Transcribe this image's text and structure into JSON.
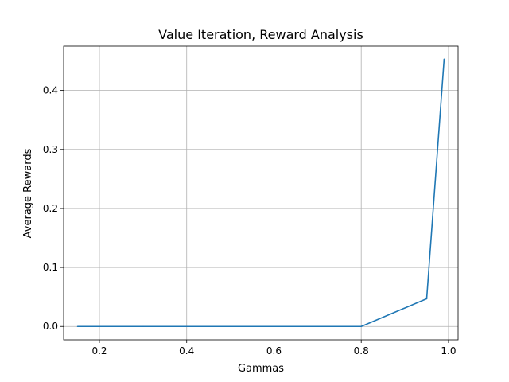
{
  "chart_data": {
    "type": "line",
    "title": "Value Iteration, Reward Analysis",
    "xlabel": "Gammas",
    "ylabel": "Average Rewards",
    "xlim": [
      0.118,
      1.022
    ],
    "ylim": [
      -0.0226,
      0.475
    ],
    "grid": true,
    "x_ticks": [
      {
        "value": 0.2,
        "label": "0.2"
      },
      {
        "value": 0.4,
        "label": "0.4"
      },
      {
        "value": 0.6,
        "label": "0.6"
      },
      {
        "value": 0.8,
        "label": "0.8"
      },
      {
        "value": 1.0,
        "label": "1.0"
      }
    ],
    "y_ticks": [
      {
        "value": 0.0,
        "label": "0.0"
      },
      {
        "value": 0.1,
        "label": "0.1"
      },
      {
        "value": 0.2,
        "label": "0.2"
      },
      {
        "value": 0.3,
        "label": "0.3"
      },
      {
        "value": 0.4,
        "label": "0.4"
      }
    ],
    "series": [
      {
        "color": "#1f77b4",
        "x": [
          0.15,
          0.3,
          0.5,
          0.7,
          0.8,
          0.95,
          0.99
        ],
        "y": [
          0.0,
          0.0,
          0.0,
          0.0,
          0.0,
          0.047,
          0.453
        ]
      }
    ]
  }
}
